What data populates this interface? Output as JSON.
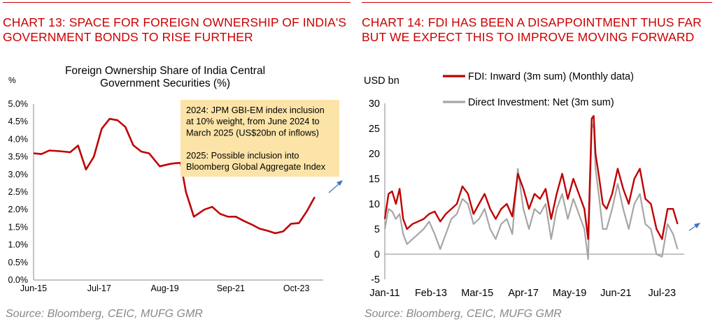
{
  "colors": {
    "header_red": "#cc0000",
    "line_red": "#c00000",
    "line_gray": "#a6a6a6",
    "annotation_bg": "#fce4a8",
    "arrow_blue": "#4472c4",
    "source_gray": "#888888"
  },
  "left": {
    "header_lines": [
      "CHART 13: SPACE FOR FOREIGN OWNERSHIP OF INDIA'S",
      "GOVERNMENT BONDS TO RISE FURTHER"
    ],
    "source": "Source: Bloomberg, CEIC, MUFG GMR"
  },
  "right": {
    "header_lines": [
      "CHART 14: FDI HAS BEEN A DISAPPOINTMENT THUS FAR",
      "BUT WE EXPECT THIS TO IMPROVE MOVING FORWARD"
    ],
    "source": "Source: Bloomberg, CEIC, MUFG GMR"
  },
  "chart_data": [
    {
      "type": "line",
      "title_lines": [
        "Foreign Ownership Share of India Central",
        "Government Securities (%)"
      ],
      "ylabel": "%",
      "ylim": [
        0,
        5
      ],
      "y_ticks": [
        "0.0%",
        "0.5%",
        "1.0%",
        "1.5%",
        "2.0%",
        "2.5%",
        "3.0%",
        "3.5%",
        "4.0%",
        "4.5%",
        "5.0%"
      ],
      "x_ticks": [
        "Jun-15",
        "Jul-17",
        "Aug-19",
        "Sep-21",
        "Oct-23"
      ],
      "xlim": [
        2015.42,
        2024.6
      ],
      "grid": false,
      "series": [
        {
          "name": "",
          "color": "#c00000",
          "x": [
            2015.42,
            2015.67,
            2015.92,
            2016.25,
            2016.58,
            2016.83,
            2017.08,
            2017.33,
            2017.58,
            2017.83,
            2018.08,
            2018.33,
            2018.58,
            2018.83,
            2019.08,
            2019.42,
            2019.75,
            2019.92,
            2020.08,
            2020.25,
            2020.5,
            2020.83,
            2021.08,
            2021.33,
            2021.58,
            2021.83,
            2022.08,
            2022.33,
            2022.58,
            2022.83,
            2023.08,
            2023.33,
            2023.58,
            2023.83,
            2024.08,
            2024.33
          ],
          "y": [
            3.6,
            3.58,
            3.68,
            3.66,
            3.63,
            3.82,
            3.14,
            3.5,
            4.3,
            4.58,
            4.54,
            4.35,
            3.83,
            3.65,
            3.6,
            3.23,
            3.3,
            3.32,
            3.33,
            2.5,
            1.8,
            2.0,
            2.08,
            1.88,
            1.8,
            1.8,
            1.68,
            1.58,
            1.46,
            1.4,
            1.33,
            1.38,
            1.6,
            1.62,
            1.95,
            2.36
          ]
        }
      ],
      "annotation": [
        "2024: JPM GBI-EM index inclusion",
        "at 10% weight, from June 2024 to",
        "March 2025 (US$20bn of inflows)",
        "",
        "2025: Possible inclusion into",
        "Bloomberg Global Aggregate Index"
      ]
    },
    {
      "type": "line",
      "ylabel": "USD bn",
      "ylim": [
        -5,
        30
      ],
      "y_ticks": [
        "-5",
        "0",
        "5",
        "10",
        "15",
        "20",
        "25",
        "30"
      ],
      "x_ticks": [
        "Jan-11",
        "Feb-13",
        "Mar-15",
        "Apr-17",
        "May-19",
        "Jun-21",
        "Jul-23"
      ],
      "xlim": [
        2011.0,
        2024.5
      ],
      "grid": false,
      "series": [
        {
          "name": "FDI: Inward (3m sum) (Monthly data)",
          "color": "#c00000",
          "x": [
            2011.0,
            2011.17,
            2011.33,
            2011.5,
            2011.67,
            2011.83,
            2012.0,
            2012.25,
            2012.5,
            2012.75,
            2013.0,
            2013.25,
            2013.5,
            2013.75,
            2014.0,
            2014.25,
            2014.5,
            2014.75,
            2015.0,
            2015.25,
            2015.5,
            2015.75,
            2016.0,
            2016.25,
            2016.5,
            2016.75,
            2017.0,
            2017.25,
            2017.5,
            2017.75,
            2018.0,
            2018.25,
            2018.5,
            2018.75,
            2019.0,
            2019.25,
            2019.5,
            2019.75,
            2020.0,
            2020.17,
            2020.33,
            2020.42,
            2020.5,
            2020.67,
            2020.83,
            2021.0,
            2021.25,
            2021.5,
            2021.75,
            2022.0,
            2022.25,
            2022.5,
            2022.75,
            2023.0,
            2023.25,
            2023.5,
            2023.75,
            2024.0,
            2024.2
          ],
          "y": [
            7,
            12,
            12.5,
            10,
            13,
            7,
            5,
            6,
            6.5,
            7,
            8,
            8.5,
            6.5,
            8,
            9,
            10,
            13.5,
            12,
            8,
            10,
            12,
            9,
            7,
            9,
            10,
            7.5,
            16,
            13,
            9,
            12,
            11,
            13,
            7,
            12,
            16,
            11,
            15,
            12,
            9,
            3,
            27,
            27.5,
            20,
            15,
            10,
            9,
            12,
            17,
            13,
            10,
            15,
            17,
            11,
            10,
            5,
            3,
            9,
            9,
            6
          ]
        },
        {
          "name": "Direct Investment: Net (3m sum)",
          "color": "#a6a6a6",
          "x": [
            2011.0,
            2011.17,
            2011.33,
            2011.5,
            2011.67,
            2011.83,
            2012.0,
            2012.25,
            2012.5,
            2012.75,
            2013.0,
            2013.25,
            2013.5,
            2013.75,
            2014.0,
            2014.25,
            2014.5,
            2014.75,
            2015.0,
            2015.25,
            2015.5,
            2015.75,
            2016.0,
            2016.25,
            2016.5,
            2016.75,
            2017.0,
            2017.25,
            2017.5,
            2017.75,
            2018.0,
            2018.25,
            2018.5,
            2018.75,
            2019.0,
            2019.25,
            2019.5,
            2019.75,
            2020.0,
            2020.17,
            2020.33,
            2020.42,
            2020.5,
            2020.67,
            2020.83,
            2021.0,
            2021.25,
            2021.5,
            2021.75,
            2022.0,
            2022.25,
            2022.5,
            2022.75,
            2023.0,
            2023.25,
            2023.5,
            2023.75,
            2024.0,
            2024.2
          ],
          "y": [
            5,
            9,
            8.5,
            7,
            8,
            4,
            2,
            3,
            4,
            5,
            6.5,
            4,
            1,
            4,
            7,
            8,
            11,
            10,
            6,
            7,
            9,
            5,
            3,
            6,
            7,
            4,
            17,
            9,
            5,
            9,
            8,
            10,
            3,
            9,
            12,
            7,
            11,
            8,
            5,
            -1,
            25,
            26,
            17,
            11,
            5,
            5,
            9,
            14,
            9,
            5,
            10,
            12,
            6,
            5,
            0,
            -0.5,
            6,
            4,
            1
          ]
        }
      ]
    }
  ]
}
